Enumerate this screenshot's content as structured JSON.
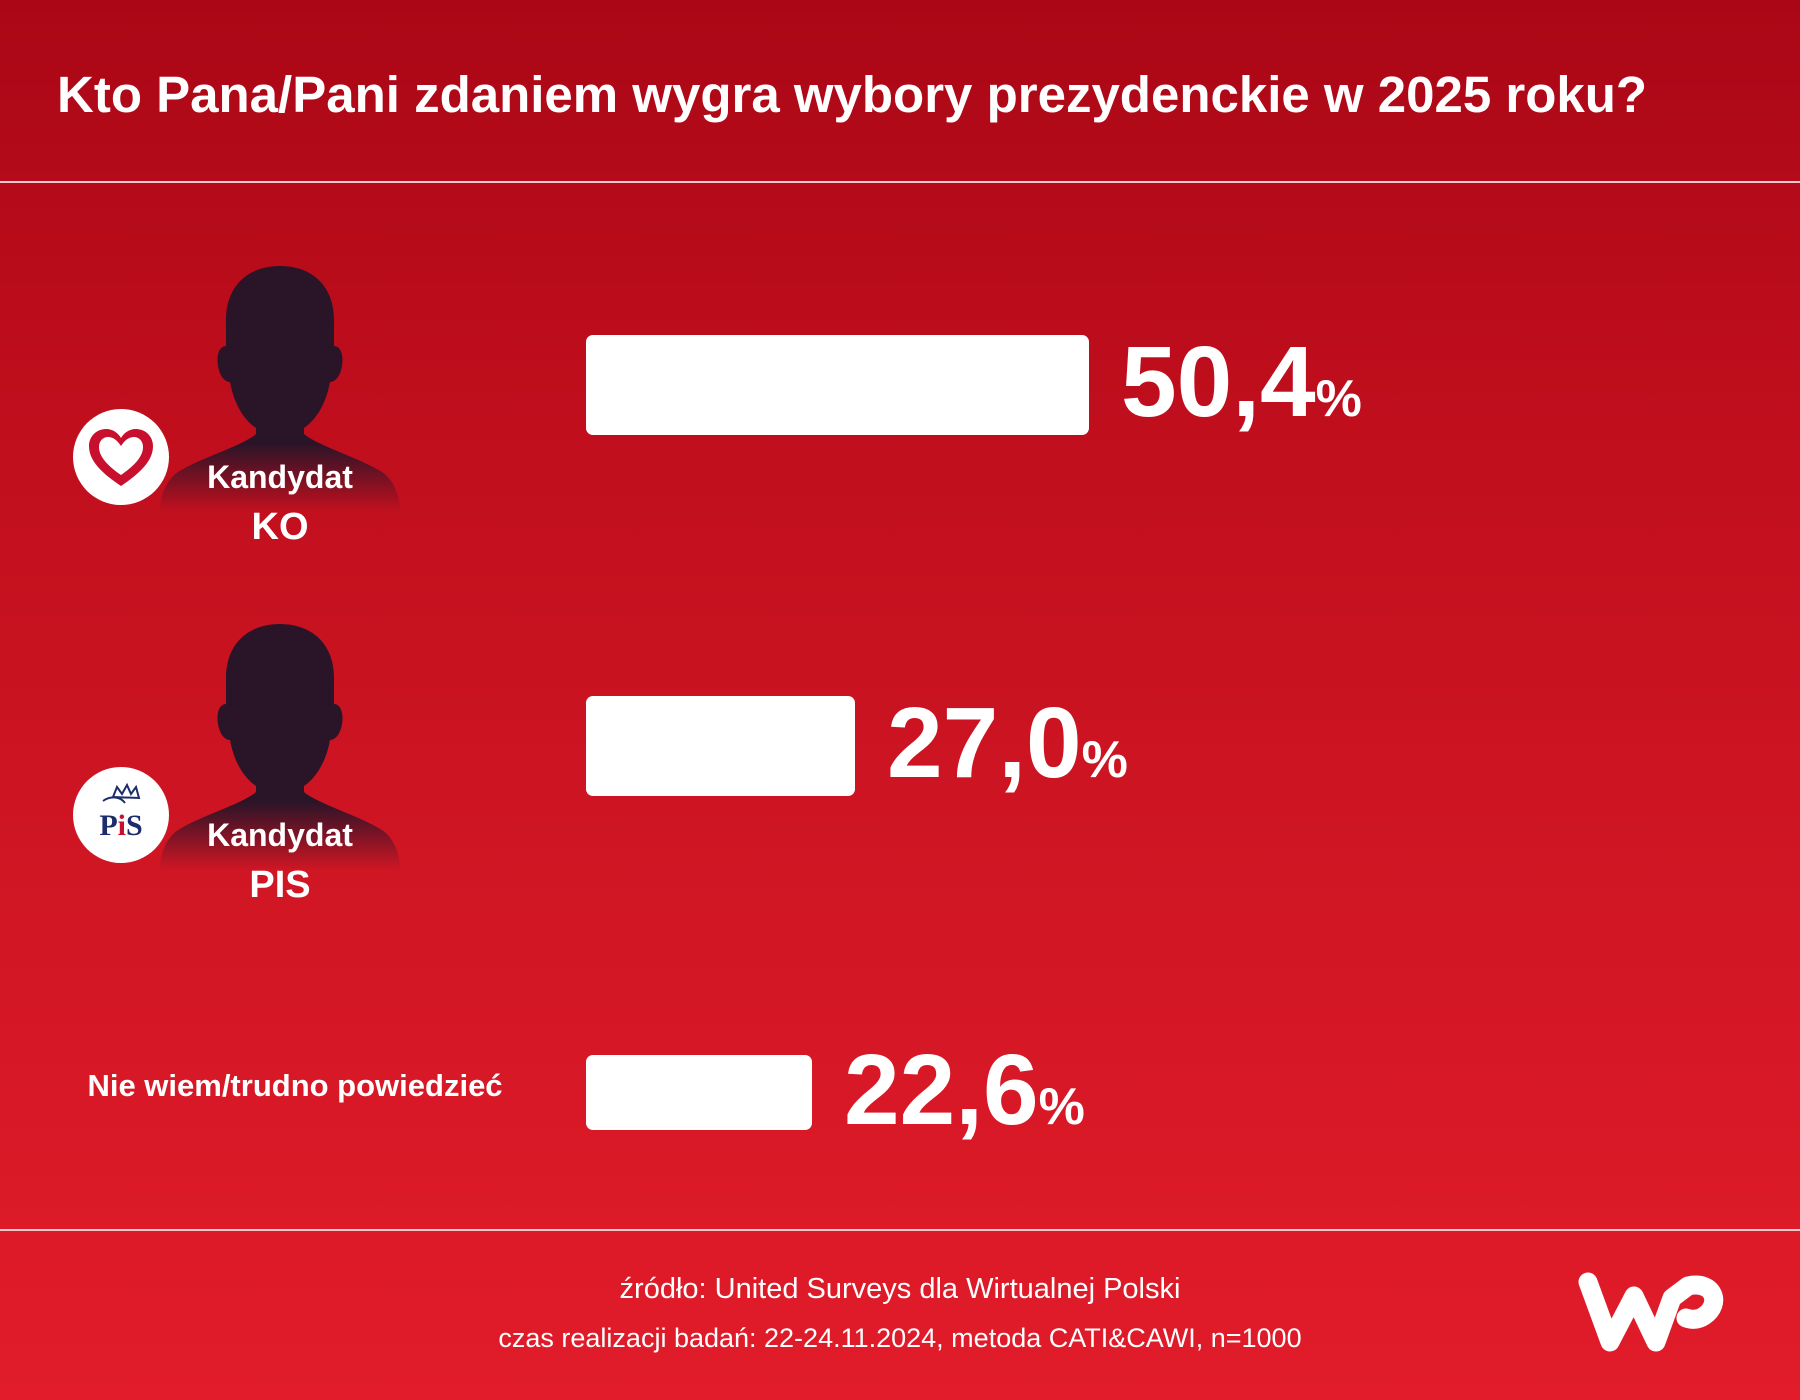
{
  "header": {
    "title": "Kto Pana/Pani zdaniem wygra wybory prezydenckie w 2025 roku?"
  },
  "candidates": [
    {
      "label_line1": "Kandydat",
      "label_line2": "KO",
      "logo": "heart-icon"
    },
    {
      "label_line1": "Kandydat",
      "label_line2": "PIS",
      "logo": "pis-logo"
    }
  ],
  "chart_data": {
    "type": "bar",
    "orientation": "horizontal",
    "categories": [
      "Kandydat KO",
      "Kandydat PIS",
      "Nie wiem/trudno powiedzieć"
    ],
    "values": [
      50.4,
      27.0,
      22.6
    ],
    "value_labels": [
      "50,4",
      "27,0",
      "22,6"
    ],
    "unit": "%",
    "title": "Kto Pana/Pani zdaniem wygra wybory prezydenckie w 2025 roku?",
    "bar_color": "#ffffff"
  },
  "other_label": "Nie wiem/trudno powiedzieć",
  "footer": {
    "source": "źródło: United Surveys dla Wirtualnej Polski",
    "details": "czas realizacji badań: 22-24.11.2024, metoda CATI&CAWI, n=1000"
  },
  "brand": {
    "name": "WP"
  },
  "colors": {
    "background_top": "#aa0716",
    "background_bottom": "#e21c2a",
    "silhouette": "#2a1428",
    "ko_heart": "#c8102e",
    "pis_blue": "#1d2d6b",
    "pis_red": "#c8102e"
  }
}
